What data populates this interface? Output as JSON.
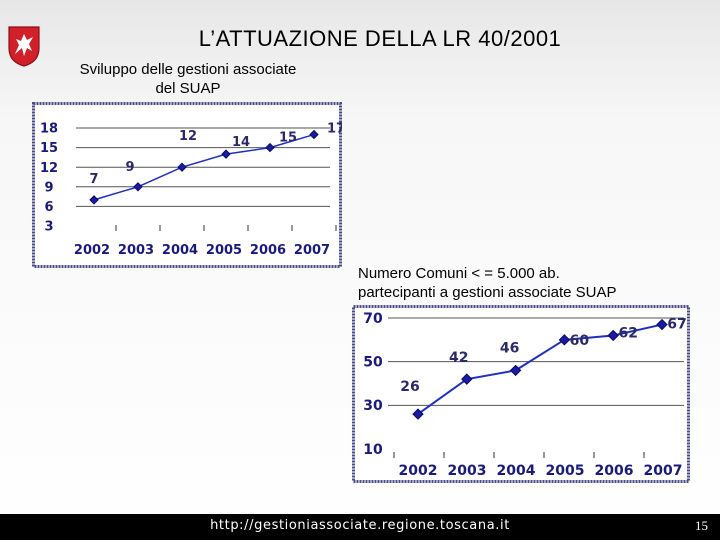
{
  "header": {
    "title": "L’ATTUAZIONE DELLA LR 40/2001"
  },
  "logo": {
    "icon": "pegasus-crest-icon",
    "color": "#d0202a"
  },
  "chart1_caption": {
    "line1": "Sviluppo delle gestioni associate",
    "line2": "del SUAP"
  },
  "chart2_caption": {
    "line1": "Numero Comuni < = 5.000 ab.",
    "line2": "partecipanti a gestioni associate SUAP"
  },
  "chart_data": [
    {
      "type": "line",
      "title": "Sviluppo delle gestioni associate del SUAP",
      "categories": [
        "2002",
        "2003",
        "2004",
        "2005",
        "2006",
        "2007"
      ],
      "series": [
        {
          "values": [
            7,
            9,
            12,
            14,
            15,
            17
          ]
        }
      ],
      "y_ticks": [
        "18",
        "15",
        "12",
        "9",
        "6",
        "3"
      ],
      "ylim": [
        3,
        18
      ],
      "grid": true,
      "line_color": "#1f2fbf",
      "frame_color": "#4a4a8a"
    },
    {
      "type": "line",
      "title": "Numero Comuni < = 5.000 ab. partecipanti a gestioni associate SUAP",
      "categories": [
        "2002",
        "2003",
        "2004",
        "2005",
        "2006",
        "2007"
      ],
      "series": [
        {
          "values": [
            26,
            42,
            46,
            60,
            62,
            67
          ]
        }
      ],
      "y_ticks": [
        "70",
        "50",
        "30",
        "10"
      ],
      "ylim": [
        10,
        70
      ],
      "grid": true,
      "line_color": "#1f2fbf",
      "frame_color": "#4a4a8a"
    }
  ],
  "footer": {
    "url": "http://gestioniassociate.regione.toscana.it",
    "page": "15"
  }
}
